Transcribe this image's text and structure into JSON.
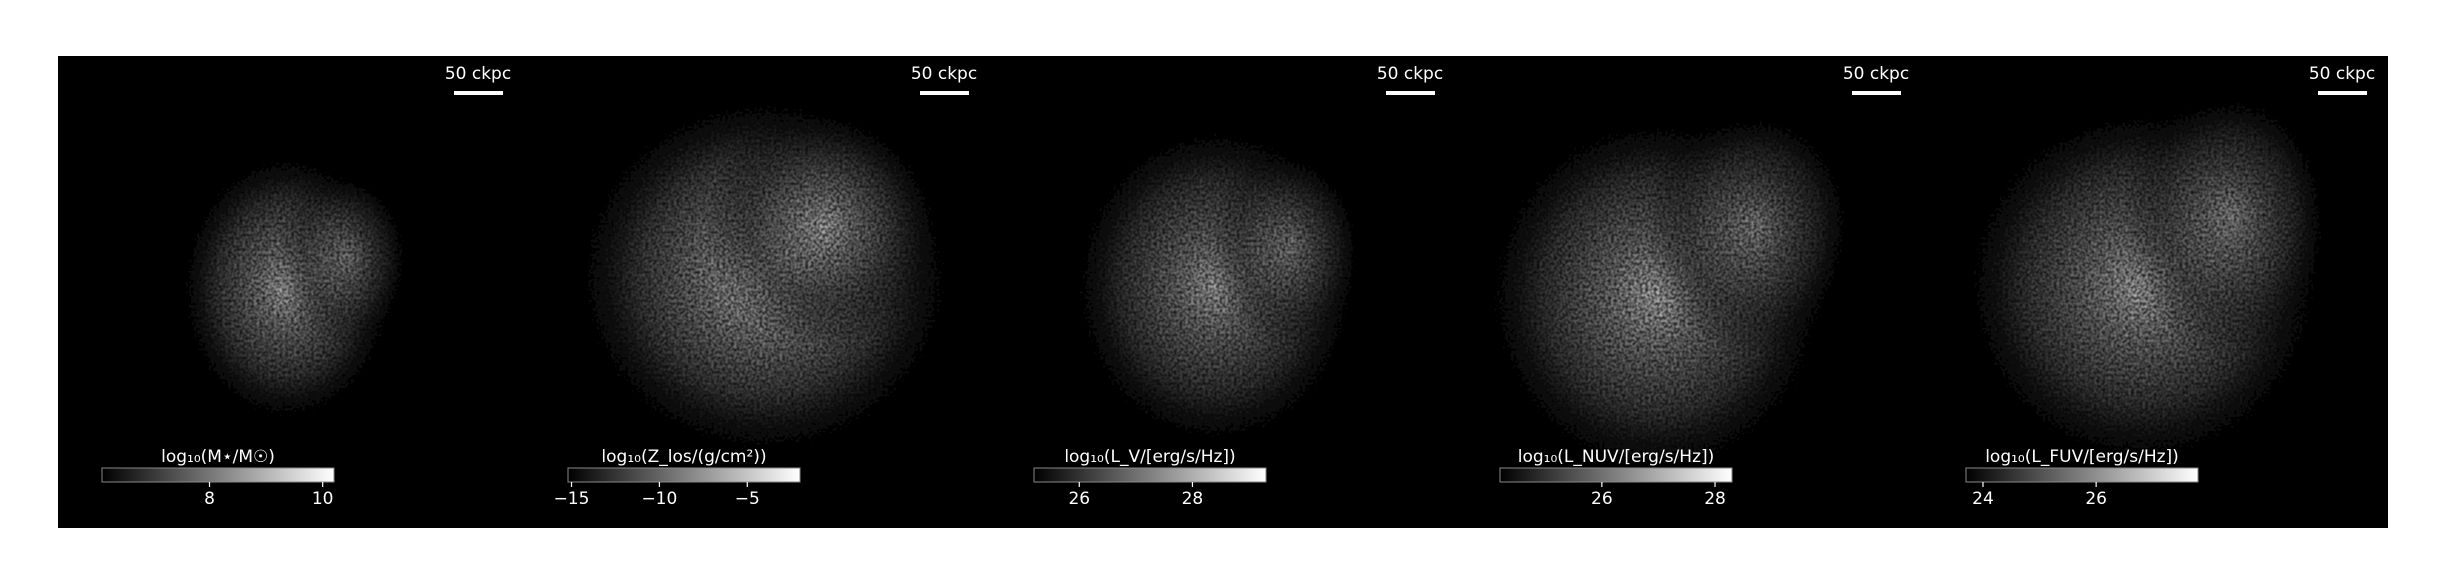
{
  "chart_data": [
    {
      "type": "image",
      "scalebar_label": "50 ckpc",
      "colorbar_label": "log₁₀(M⋆/M☉)",
      "colorbar_lim": [
        6.1,
        10.2
      ],
      "colorbar_ticks": [
        8,
        10
      ],
      "colormap": "gray"
    },
    {
      "type": "image",
      "scalebar_label": "50 ckpc",
      "colorbar_label": "log₁₀(Z_los/(g/cm²))",
      "colorbar_lim": [
        -15.2,
        -2
      ],
      "colorbar_ticks": [
        {
          "value": -15,
          "label": "−15"
        },
        {
          "value": -10,
          "label": "−10"
        },
        {
          "value": -5,
          "label": "−5"
        }
      ],
      "colormap": "gray"
    },
    {
      "type": "image",
      "scalebar_label": "50 ckpc",
      "colorbar_label": "log₁₀(L_V/[erg/s/Hz])",
      "colorbar_lim": [
        25.2,
        29.3
      ],
      "colorbar_ticks": [
        26,
        28
      ],
      "colormap": "gray"
    },
    {
      "type": "image",
      "scalebar_label": "50 ckpc",
      "colorbar_label": "log₁₀(L_NUV/[erg/s/Hz])",
      "colorbar_lim": [
        24.2,
        28.3
      ],
      "colorbar_ticks": [
        26,
        28
      ],
      "colormap": "gray"
    },
    {
      "type": "image",
      "scalebar_label": "50 ckpc",
      "colorbar_label": "log₁₀(L_FUV/[erg/s/Hz])",
      "colorbar_lim": [
        23.7,
        27.8
      ],
      "colorbar_ticks": [
        24,
        26
      ],
      "colormap": "gray"
    }
  ]
}
